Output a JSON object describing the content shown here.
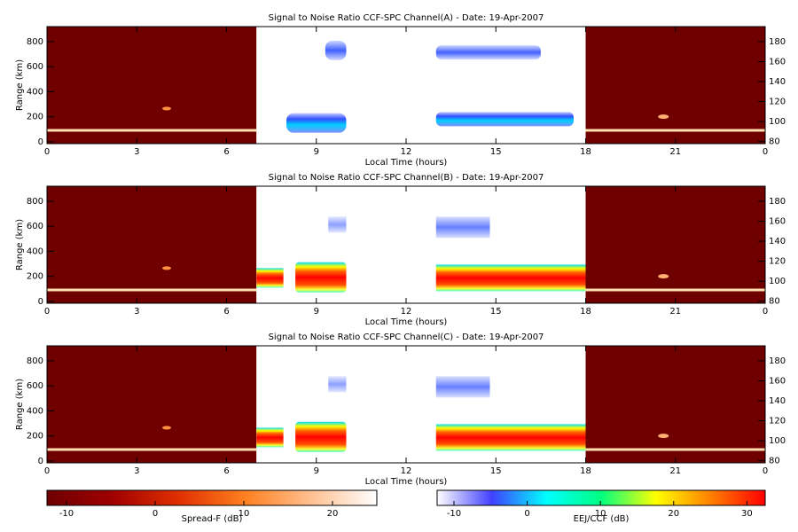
{
  "chart_data": [
    {
      "type": "heatmap",
      "title": "Signal to Noise Ratio CCF-SPC Channel(A) - Date: 19-Apr-2007",
      "xlabel": "Local Time (hours)",
      "ylabel": "Range (km)",
      "xlim": [
        0,
        24
      ],
      "xticks": [
        0,
        3,
        6,
        9,
        12,
        15,
        18,
        21,
        {
          "value": 24,
          "label": "0"
        }
      ],
      "ylim": [
        -15,
        920
      ],
      "yticks": [
        0,
        200,
        400,
        600,
        800
      ],
      "y2lim": [
        78,
        195
      ],
      "y2ticks": [
        80,
        100,
        120,
        140,
        160,
        180
      ]
    },
    {
      "type": "heatmap",
      "title": "Signal to Noise Ratio CCF-SPC Channel(B) - Date: 19-Apr-2007",
      "xlabel": "Local Time (hours)",
      "ylabel": "Range (km)",
      "xlim": [
        0,
        24
      ],
      "xticks": [
        0,
        3,
        6,
        9,
        12,
        15,
        18,
        21,
        {
          "value": 24,
          "label": "0"
        }
      ],
      "ylim": [
        -15,
        920
      ],
      "yticks": [
        0,
        200,
        400,
        600,
        800
      ],
      "y2lim": [
        78,
        195
      ],
      "y2ticks": [
        80,
        100,
        120,
        140,
        160,
        180
      ]
    },
    {
      "type": "heatmap",
      "title": "Signal to Noise Ratio CCF-SPC Channel(C) - Date: 19-Apr-2007",
      "xlabel": "Local Time (hours)",
      "ylabel": "Range (km)",
      "xlim": [
        0,
        24
      ],
      "xticks": [
        0,
        3,
        6,
        9,
        12,
        15,
        18,
        21,
        {
          "value": 24,
          "label": "0"
        }
      ],
      "ylim": [
        -15,
        920
      ],
      "yticks": [
        0,
        200,
        400,
        600,
        800
      ],
      "y2lim": [
        78,
        195
      ],
      "y2ticks": [
        80,
        100,
        120,
        140,
        160,
        180
      ]
    }
  ],
  "colorbars": [
    {
      "label": "Spread-F (dB)",
      "lim": [
        -12.2,
        25
      ],
      "ticks": [
        -10,
        0,
        10,
        20
      ],
      "colors": [
        "#6e0000",
        "#a00000",
        "#e03000",
        "#ff8020",
        "#ffc090",
        "#ffffff"
      ]
    },
    {
      "label": "EEJ/CCF (dB)",
      "lim": [
        -12.3,
        32.5
      ],
      "ticks": [
        -10,
        0,
        10,
        20,
        30
      ],
      "colors": [
        "#ffffff",
        "#4040ff",
        "#00ffff",
        "#00ff80",
        "#ffff00",
        "#ff8000",
        "#ff0000"
      ]
    }
  ]
}
